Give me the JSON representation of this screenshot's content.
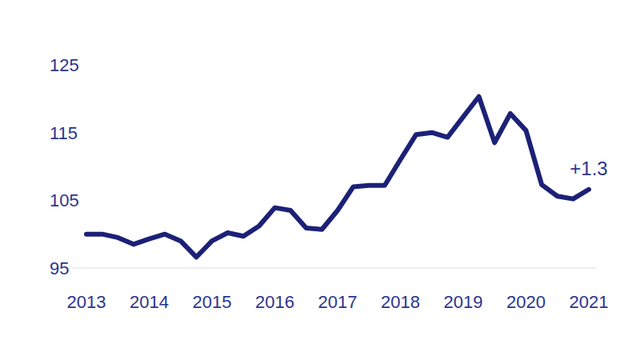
{
  "chart_data": {
    "type": "line",
    "x": [
      2013,
      2013.25,
      2013.5,
      2013.75,
      2014,
      2014.25,
      2014.5,
      2014.75,
      2015,
      2015.25,
      2015.5,
      2015.75,
      2016,
      2016.25,
      2016.5,
      2016.75,
      2017,
      2017.25,
      2017.5,
      2017.75,
      2018,
      2018.25,
      2018.5,
      2018.75,
      2019,
      2019.25,
      2019.5,
      2019.75,
      2020,
      2020.25,
      2020.5,
      2020.75,
      2021
    ],
    "values": [
      100,
      100,
      99.5,
      98.5,
      99.3,
      100,
      99,
      96.6,
      99,
      100.2,
      99.7,
      101.2,
      103.9,
      103.5,
      100.9,
      100.7,
      103.5,
      107,
      107.2,
      107.2,
      111,
      114.7,
      115,
      114.3,
      117.3,
      120.3,
      113.5,
      117.8,
      115.3,
      107.3,
      105.6,
      105.2,
      106.6
    ],
    "color": "#1c2177",
    "xlim": [
      2013,
      2021
    ],
    "xticks": [
      2013,
      2014,
      2015,
      2016,
      2017,
      2018,
      2019,
      2020,
      2021
    ],
    "ylim": [
      95,
      125
    ],
    "yticks": [
      95,
      105,
      115,
      125
    ],
    "grid": false,
    "annotations": [
      {
        "text": "+1.3",
        "x": 2021,
        "y": 106.6
      }
    ]
  }
}
